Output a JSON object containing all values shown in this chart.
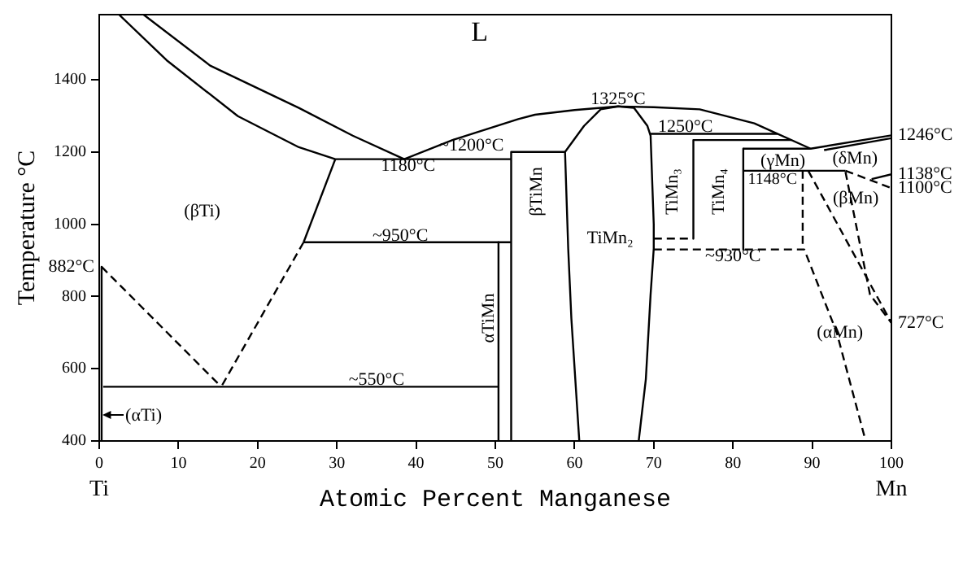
{
  "chart_data": {
    "type": "line",
    "xlabel": "Atomic Percent Manganese",
    "ylabel": "Temperature °C",
    "xlim": [
      0,
      100
    ],
    "xticks": [
      0,
      10,
      20,
      30,
      40,
      50,
      60,
      70,
      80,
      90,
      100
    ],
    "ylim": [
      400,
      1580
    ],
    "yticks": [
      400,
      600,
      800,
      1000,
      1200,
      1400
    ],
    "grid": false,
    "legend": false,
    "marker": "none",
    "series": [
      {
        "color": "#000000",
        "line_style": "solid",
        "x": [
          5.6,
          14,
          25.2,
          32,
          38.5,
          44.6,
          52.9,
          55,
          60,
          65.5,
          70,
          75.8,
          82.7,
          89.8,
          100
        ],
        "values": [
          1580,
          1439,
          1322,
          1245,
          1180,
          1233,
          1291,
          1303,
          1316,
          1326,
          1324,
          1318,
          1279,
          1209,
          1246
        ]
      },
      {
        "color": "#000000",
        "line_style": "solid",
        "x": [
          2.5,
          8.5,
          17.5,
          25.2,
          29.8,
          52
        ],
        "values": [
          1580,
          1454,
          1299,
          1213,
          1180,
          1180
        ]
      },
      {
        "color": "#000000",
        "line_style": "solid",
        "x": [
          29.8,
          25.8
        ],
        "values": [
          1180,
          950
        ]
      },
      {
        "color": "#000000",
        "line_style": "dashed",
        "x": [
          25.8,
          15.4
        ],
        "values": [
          950,
          550
        ]
      },
      {
        "color": "#000000",
        "line_style": "dashed",
        "x": [
          0.3,
          15.4
        ],
        "values": [
          882,
          550
        ]
      },
      {
        "color": "#000000",
        "line_style": "solid",
        "x": [
          25.8,
          52
        ],
        "values": [
          950,
          950
        ]
      },
      {
        "color": "#000000",
        "line_style": "solid",
        "x": [
          50.4,
          50.4
        ],
        "values": [
          950,
          400
        ]
      },
      {
        "color": "#000000",
        "line_style": "solid",
        "x": [
          58.8,
          52,
          52
        ],
        "values": [
          1200,
          1200,
          400
        ]
      },
      {
        "color": "#000000",
        "line_style": "solid",
        "x": [
          60.6,
          59.6,
          59.2,
          58.8,
          61.2,
          63.3,
          65.5,
          67.5,
          69.2,
          69.6,
          70,
          70,
          69.6,
          69,
          68.1
        ],
        "values": [
          400,
          739,
          933,
          1200,
          1272,
          1318,
          1326,
          1322,
          1272,
          1245,
          999,
          933,
          805,
          571,
          400
        ]
      },
      {
        "color": "#000000",
        "line_style": "solid",
        "x": [
          69.6,
          85.6
        ],
        "values": [
          1250,
          1250
        ]
      },
      {
        "color": "#000000",
        "line_style": "solid",
        "x": [
          75,
          87.4
        ],
        "values": [
          1233,
          1233
        ]
      },
      {
        "color": "#000000",
        "line_style": "solid",
        "x": [
          75,
          75
        ],
        "values": [
          1233,
          960
        ]
      },
      {
        "color": "#000000",
        "line_style": "solid",
        "x": [
          81.3,
          81.3
        ],
        "values": [
          1209,
          930
        ]
      },
      {
        "color": "#000000",
        "line_style": "solid",
        "x": [
          81.3,
          89.8
        ],
        "values": [
          1209,
          1209
        ]
      },
      {
        "color": "#000000",
        "line_style": "solid",
        "x": [
          91.5,
          100
        ],
        "values": [
          1205,
          1238
        ]
      },
      {
        "color": "#000000",
        "line_style": "solid",
        "x": [
          81.3,
          94.2
        ],
        "values": [
          1148,
          1148
        ]
      },
      {
        "color": "#000000",
        "line_style": "dashed",
        "x": [
          94.2,
          100
        ],
        "values": [
          1148,
          1100
        ]
      },
      {
        "color": "#000000",
        "line_style": "solid",
        "x": [
          97.5,
          100
        ],
        "values": [
          1125,
          1138
        ]
      },
      {
        "color": "#000000",
        "line_style": "dashed",
        "x": [
          70,
          75
        ],
        "values": [
          960,
          960
        ]
      },
      {
        "color": "#000000",
        "line_style": "dashed",
        "x": [
          70,
          89,
          93.1,
          96.7
        ],
        "values": [
          930,
          930,
          700,
          404
        ]
      },
      {
        "color": "#000000",
        "line_style": "dashed",
        "x": [
          88.8,
          88.8
        ],
        "values": [
          1148,
          940
        ]
      },
      {
        "color": "#000000",
        "line_style": "dashed",
        "x": [
          89.5,
          100
        ],
        "values": [
          1148,
          727
        ]
      },
      {
        "color": "#000000",
        "line_style": "dashed",
        "x": [
          94.2,
          97.3,
          100
        ],
        "values": [
          1145,
          805,
          727
        ]
      },
      {
        "color": "#000000",
        "line_style": "solid",
        "x": [
          0.5,
          50.4
        ],
        "values": [
          550,
          550
        ]
      },
      {
        "color": "#000000",
        "line_style": "solid",
        "x": [
          0.3,
          0.3
        ],
        "values": [
          882,
          400
        ]
      }
    ],
    "annotations": [
      "L",
      "(βTi)",
      {
        "text": "882°C",
        "x": 0,
        "y": 882
      },
      {
        "text": "1180°C",
        "x": 39,
        "y": 1160
      },
      "~1200°C",
      {
        "text": "1325°C",
        "x": 65.5,
        "y": 1345
      },
      {
        "text": "1250°C",
        "x": 74,
        "y": 1268
      },
      "1148°C",
      "βTiMn",
      "TiMn₃",
      "TiMn₄",
      "TiMn₂",
      {
        "text": "~950°C",
        "x": 38,
        "y": 968
      },
      {
        "text": "~930°C",
        "x": 80,
        "y": 910
      },
      {
        "text": "~550°C",
        "x": 35,
        "y": 568
      },
      "αTiMn",
      "(γMn)",
      "(δMn)",
      {
        "text": "(βMn)",
        "x": 95.5,
        "y": 1070
      },
      {
        "text": "(αMn)",
        "x": 93.5,
        "y": 700
      },
      "(αTi)",
      {
        "text": "1246°C",
        "x": 100,
        "y": 1246
      },
      {
        "text": "1138°C",
        "x": 100,
        "y": 1138
      },
      {
        "text": "1100°C",
        "x": 100,
        "y": 1100
      },
      {
        "text": "727°C",
        "x": 100,
        "y": 727
      },
      "Ti",
      "Mn"
    ]
  }
}
